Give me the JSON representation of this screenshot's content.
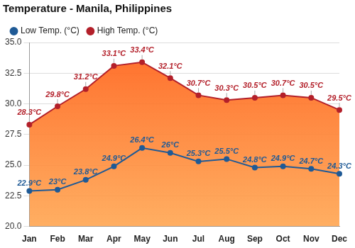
{
  "chart_data": {
    "type": "line",
    "title": "Temperature - Manila, Philippines",
    "categories": [
      "Jan",
      "Feb",
      "Mar",
      "Apr",
      "May",
      "Jun",
      "Jul",
      "Aug",
      "Sep",
      "Oct",
      "Nov",
      "Dec"
    ],
    "series": [
      {
        "name": "Low Temp. (°C)",
        "color": "#1f5a96",
        "marker": "circle",
        "values": [
          22.9,
          23,
          23.8,
          24.9,
          26.4,
          26,
          25.3,
          25.5,
          24.8,
          24.9,
          24.7,
          24.3
        ],
        "value_labels": [
          "22.9°C",
          "23°C",
          "23.8°C",
          "24.9°C",
          "26.4°C",
          "26°C",
          "25.3°C",
          "25.5°C",
          "24.8°C",
          "24.9°C",
          "24.7°C",
          "24.3°C"
        ]
      },
      {
        "name": "High Temp. (°C)",
        "color": "#b3202a",
        "marker": "circle",
        "values": [
          28.3,
          29.8,
          31.2,
          33.1,
          33.4,
          32.1,
          30.7,
          30.3,
          30.5,
          30.7,
          30.5,
          29.5
        ],
        "value_labels": [
          "28.3°C",
          "29.8°C",
          "31.2°C",
          "33.1°C",
          "33.4°C",
          "32.1°C",
          "30.7°C",
          "30.3°C",
          "30.5°C",
          "30.7°C",
          "30.5°C",
          "29.5°C"
        ]
      }
    ],
    "ylim": [
      20,
      35
    ],
    "yticks": [
      {
        "value": 20,
        "label": "20.0"
      },
      22.5,
      {
        "value": 25,
        "label": "25.0"
      },
      27.5,
      {
        "value": 30,
        "label": "30.0"
      },
      32.5,
      {
        "value": 35,
        "label": "35.0"
      }
    ],
    "grid": true,
    "legend": "top-left",
    "data_labels": true
  }
}
